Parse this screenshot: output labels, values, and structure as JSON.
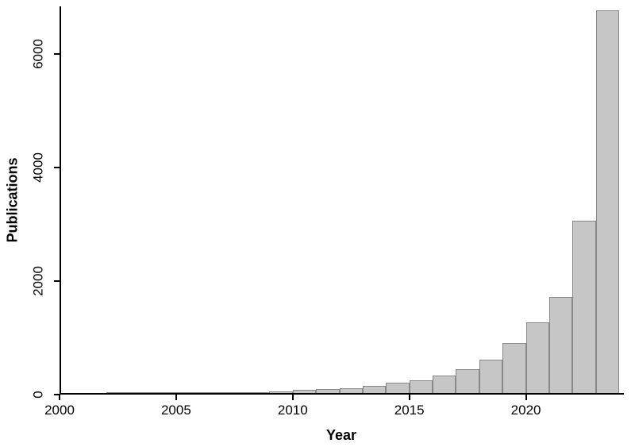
{
  "chart_data": {
    "type": "bar",
    "title": "",
    "xlabel": "Year",
    "ylabel": "Publications",
    "x_domain": [
      2000,
      2024.2
    ],
    "y_domain": [
      0,
      6840
    ],
    "x_ticks": [
      2000,
      2005,
      2010,
      2015,
      2020
    ],
    "y_ticks": [
      0,
      2000,
      4000,
      6000
    ],
    "grid": false,
    "legend": false,
    "bar_fill": "#c6c6c6",
    "bar_stroke": "#888888",
    "axis_color": "#000000",
    "background_color": "#ffffff",
    "categories": [
      2003,
      2004,
      2005,
      2006,
      2007,
      2008,
      2009,
      2010,
      2011,
      2012,
      2013,
      2014,
      2015,
      2016,
      2017,
      2018,
      2019,
      2020,
      2021,
      2022,
      2023,
      2024
    ],
    "values": [
      8,
      10,
      12,
      15,
      20,
      28,
      35,
      45,
      65,
      85,
      105,
      140,
      190,
      240,
      320,
      430,
      600,
      890,
      1260,
      1700,
      3050,
      6750
    ]
  }
}
